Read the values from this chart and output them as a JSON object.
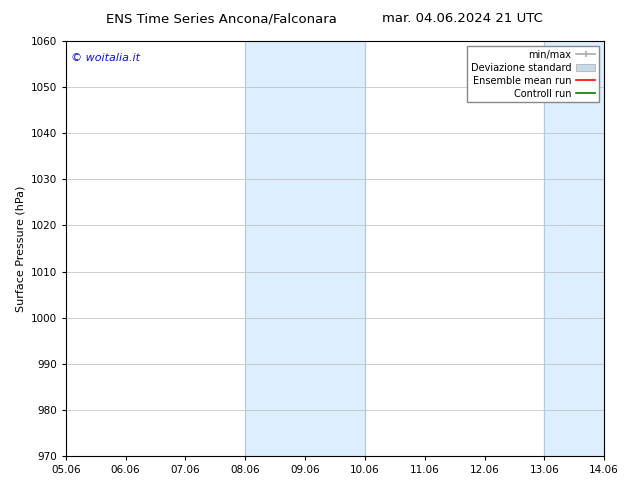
{
  "title_left": "ENS Time Series Ancona/Falconara",
  "title_right": "mar. 04.06.2024 21 UTC",
  "ylabel": "Surface Pressure (hPa)",
  "ylim": [
    970,
    1060
  ],
  "yticks": [
    970,
    980,
    990,
    1000,
    1010,
    1020,
    1030,
    1040,
    1050,
    1060
  ],
  "xlim_dates": [
    "05.06",
    "06.06",
    "07.06",
    "08.06",
    "09.06",
    "10.06",
    "11.06",
    "12.06",
    "13.06",
    "14.06"
  ],
  "xticks_pos": [
    0,
    1,
    2,
    3,
    4,
    5,
    6,
    7,
    8,
    9
  ],
  "shaded_regions": [
    {
      "xmin": 3,
      "xmax": 5
    },
    {
      "xmin": 8,
      "xmax": 9
    }
  ],
  "shaded_color": "#ddeeff",
  "shaded_border_color": "#b0c8e0",
  "watermark_text": "© woitalia.it",
  "watermark_color": "#1111cc",
  "legend_entries": [
    {
      "label": "min/max",
      "color": "#aaaaaa",
      "type": "errorbar"
    },
    {
      "label": "Deviazione standard",
      "color": "#c8daea",
      "type": "patch"
    },
    {
      "label": "Ensemble mean run",
      "color": "red",
      "type": "line"
    },
    {
      "label": "Controll run",
      "color": "green",
      "type": "line"
    }
  ],
  "bg_color": "white",
  "grid_color": "#bbbbbb",
  "title_fontsize": 9.5,
  "axis_fontsize": 8,
  "tick_fontsize": 7.5,
  "legend_fontsize": 7,
  "watermark_fontsize": 8
}
